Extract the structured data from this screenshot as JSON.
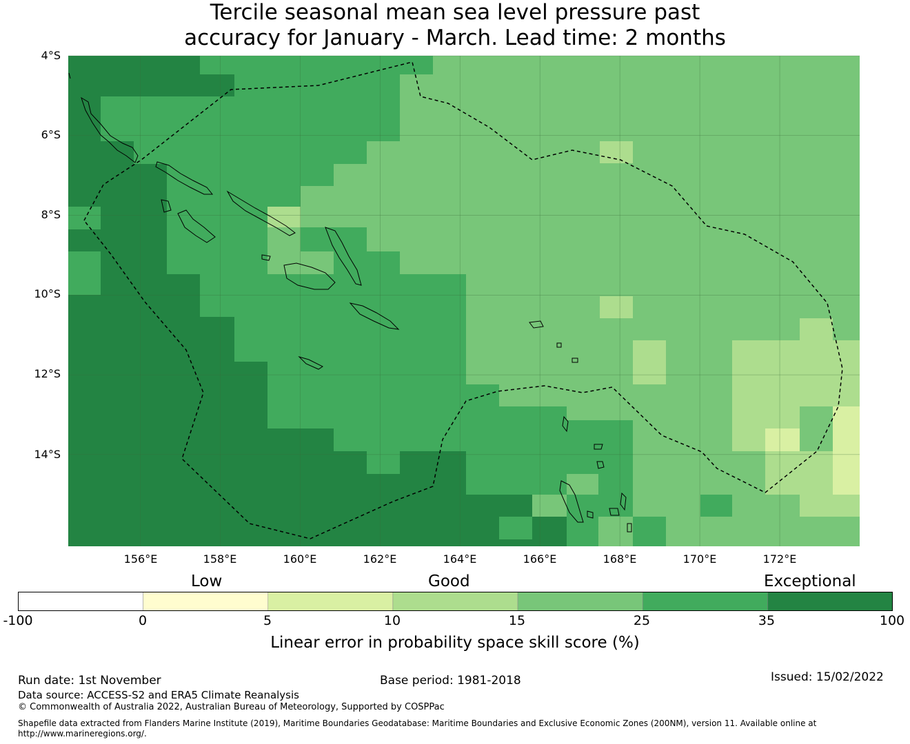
{
  "title": {
    "line1": "Tercile seasonal mean sea level pressure past",
    "line2": "accuracy for January - March. Lead time: 2 months"
  },
  "map": {
    "lon_range": [
      154.2,
      174.0
    ],
    "lat_range": [
      -4.0,
      -16.3
    ],
    "lat_ticks": [
      "4°S",
      "6°S",
      "8°S",
      "10°S",
      "12°S",
      "14°S"
    ],
    "lon_ticks": [
      "156°E",
      "158°E",
      "160°E",
      "162°E",
      "164°E",
      "166°E",
      "168°E",
      "170°E",
      "172°E"
    ],
    "category_colors": {
      "c0": "#fffdcf",
      "c1": "#d9f0a3",
      "c2": "#addd8e",
      "c3": "#78c679",
      "c4": "#41ab5d",
      "c5": "#238443"
    }
  },
  "colorbar": {
    "labels": [
      "Low",
      "Good",
      "Exceptional"
    ],
    "ticks": [
      "-100",
      "0",
      "5",
      "10",
      "15",
      "25",
      "35",
      "100"
    ],
    "colors": [
      "#ffffff",
      "#fffdcf",
      "#d9f0a3",
      "#addd8e",
      "#78c679",
      "#41ab5d",
      "#238443"
    ],
    "title": "Linear error in probability space skill score (%)"
  },
  "footer": {
    "run_date": "Run date: 1st November",
    "base_period": "Base period: 1981-2018",
    "issued": "Issued: 15/02/2022",
    "data_source": "Data source: ACCESS-S2 and ERA5 Climate Reanalysis",
    "copyright": "© Commonwealth of Australia 2022, Australian Bureau of Meteorology, Supported by COSPPac",
    "shapefile_line1": "Shapefile data extracted from Flanders Marine Institute (2019), Maritime Boundaries Geodatabase: Maritime Boundaries and Exclusive Economic Zones (200NM), version 11. Available online at",
    "shapefile_line2": "http://www.marineregions.org/."
  }
}
